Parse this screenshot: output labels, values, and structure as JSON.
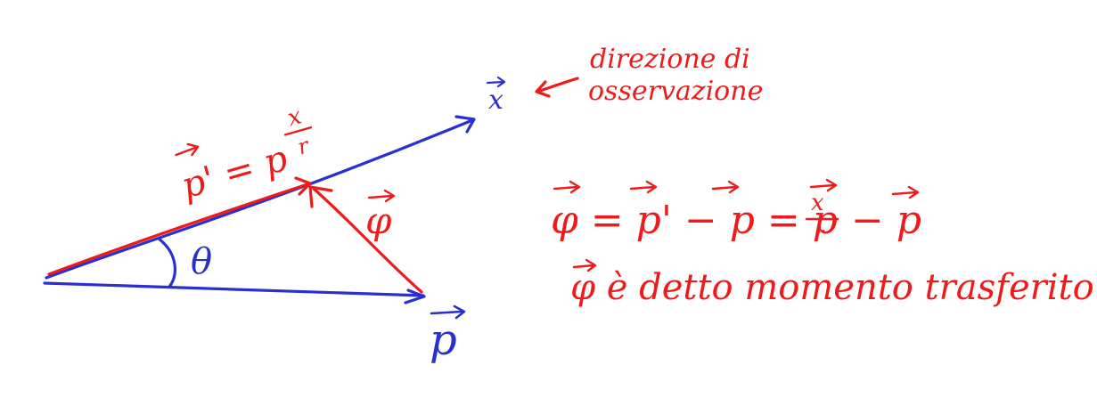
{
  "colors": {
    "blue": "#2a2fd0",
    "red": "#ef1b1b",
    "background": "#ffffff"
  },
  "labels": {
    "x_vec": "x",
    "theta": "θ",
    "p_vec": "p",
    "p_prime_eq": "p' = p",
    "p_prime_frac_num": "x",
    "p_prime_frac_den": "r",
    "phi_vec": "φ",
    "annotation_line1": "direzione di",
    "annotation_line2": "osservazione",
    "formula_lhs": "φ = p' − p = p",
    "formula_frac_num": "x",
    "formula_frac_den": "r",
    "formula_tail": "− p",
    "caption": "φ è detto momento trasferito"
  }
}
